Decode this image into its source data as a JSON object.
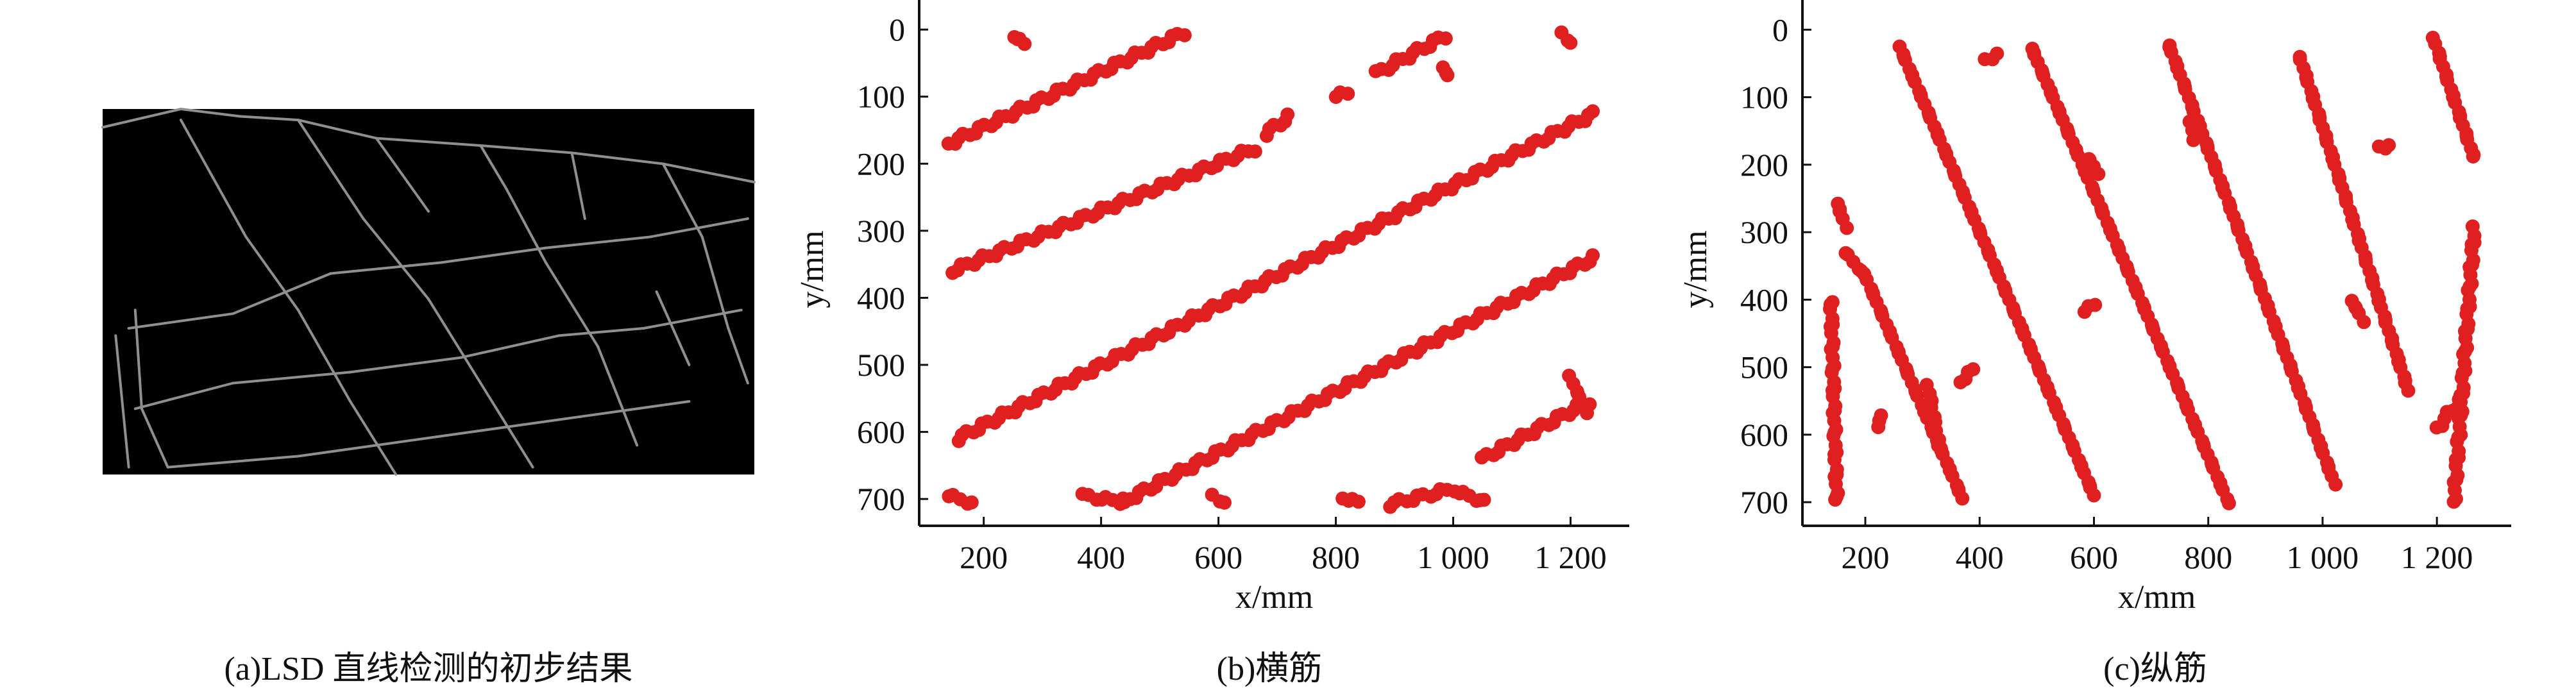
{
  "captions": {
    "a": "(a)LSD 直线检测的初步结果",
    "b": "(b)横筋",
    "c": "(c)纵筋"
  },
  "colors": {
    "points": "#e02020",
    "edge_lines": "#8f8f8f",
    "edge_image_background": "#000000"
  },
  "chart_data": [
    {
      "panel": "a",
      "type": "other",
      "description_label": "(a)LSD 直线检测的初步结果",
      "edge_segments": [
        [
          [
            0,
            0.05
          ],
          [
            0.12,
            0.0
          ]
        ],
        [
          [
            0.12,
            0.0
          ],
          [
            0.21,
            0.02
          ]
        ],
        [
          [
            0.21,
            0.02
          ],
          [
            0.3,
            0.03
          ]
        ],
        [
          [
            0.3,
            0.03
          ],
          [
            0.42,
            0.08
          ]
        ],
        [
          [
            0.42,
            0.08
          ],
          [
            0.58,
            0.1
          ]
        ],
        [
          [
            0.58,
            0.1
          ],
          [
            0.72,
            0.12
          ]
        ],
        [
          [
            0.72,
            0.12
          ],
          [
            0.86,
            0.15
          ]
        ],
        [
          [
            0.86,
            0.15
          ],
          [
            1.0,
            0.2
          ]
        ],
        [
          [
            0.04,
            0.6
          ],
          [
            0.2,
            0.56
          ]
        ],
        [
          [
            0.2,
            0.56
          ],
          [
            0.35,
            0.45
          ]
        ],
        [
          [
            0.35,
            0.45
          ],
          [
            0.52,
            0.42
          ]
        ],
        [
          [
            0.52,
            0.42
          ],
          [
            0.68,
            0.38
          ]
        ],
        [
          [
            0.68,
            0.38
          ],
          [
            0.84,
            0.35
          ]
        ],
        [
          [
            0.84,
            0.35
          ],
          [
            0.99,
            0.3
          ]
        ],
        [
          [
            0.05,
            0.82
          ],
          [
            0.2,
            0.75
          ]
        ],
        [
          [
            0.2,
            0.75
          ],
          [
            0.38,
            0.72
          ]
        ],
        [
          [
            0.38,
            0.72
          ],
          [
            0.55,
            0.68
          ]
        ],
        [
          [
            0.55,
            0.68
          ],
          [
            0.7,
            0.62
          ]
        ],
        [
          [
            0.7,
            0.62
          ],
          [
            0.83,
            0.6
          ]
        ],
        [
          [
            0.83,
            0.6
          ],
          [
            0.98,
            0.55
          ]
        ],
        [
          [
            0.1,
            0.98
          ],
          [
            0.3,
            0.95
          ]
        ],
        [
          [
            0.3,
            0.95
          ],
          [
            0.5,
            0.9
          ]
        ],
        [
          [
            0.5,
            0.9
          ],
          [
            0.7,
            0.85
          ]
        ],
        [
          [
            0.7,
            0.85
          ],
          [
            0.9,
            0.8
          ]
        ],
        [
          [
            0.12,
            0.03
          ],
          [
            0.22,
            0.35
          ]
        ],
        [
          [
            0.22,
            0.35
          ],
          [
            0.3,
            0.55
          ]
        ],
        [
          [
            0.3,
            0.55
          ],
          [
            0.38,
            0.8
          ]
        ],
        [
          [
            0.38,
            0.8
          ],
          [
            0.45,
            1.0
          ]
        ],
        [
          [
            0.3,
            0.03
          ],
          [
            0.4,
            0.3
          ]
        ],
        [
          [
            0.4,
            0.3
          ],
          [
            0.5,
            0.52
          ]
        ],
        [
          [
            0.5,
            0.52
          ],
          [
            0.58,
            0.75
          ]
        ],
        [
          [
            0.58,
            0.75
          ],
          [
            0.66,
            0.98
          ]
        ],
        [
          [
            0.42,
            0.08
          ],
          [
            0.5,
            0.28
          ]
        ],
        [
          [
            0.58,
            0.1
          ],
          [
            0.62,
            0.22
          ]
        ],
        [
          [
            0.62,
            0.22
          ],
          [
            0.68,
            0.42
          ]
        ],
        [
          [
            0.68,
            0.42
          ],
          [
            0.76,
            0.65
          ]
        ],
        [
          [
            0.76,
            0.65
          ],
          [
            0.82,
            0.92
          ]
        ],
        [
          [
            0.86,
            0.15
          ],
          [
            0.92,
            0.35
          ]
        ],
        [
          [
            0.92,
            0.35
          ],
          [
            0.96,
            0.6
          ]
        ],
        [
          [
            0.96,
            0.6
          ],
          [
            0.99,
            0.75
          ]
        ],
        [
          [
            0.05,
            0.55
          ],
          [
            0.06,
            0.82
          ]
        ],
        [
          [
            0.06,
            0.82
          ],
          [
            0.1,
            0.98
          ]
        ],
        [
          [
            0.02,
            0.62
          ],
          [
            0.04,
            0.98
          ]
        ],
        [
          [
            0.72,
            0.12
          ],
          [
            0.74,
            0.3
          ]
        ],
        [
          [
            0.85,
            0.5
          ],
          [
            0.9,
            0.7
          ]
        ]
      ]
    },
    {
      "panel": "b",
      "type": "scatter",
      "xlabel": "x/mm",
      "ylabel": "y/mm",
      "xlim": [
        90,
        1300
      ],
      "ylim": [
        740,
        -25
      ],
      "xticks": [
        200,
        400,
        600,
        800,
        1000,
        1200
      ],
      "xtick_labels": [
        "200",
        "400",
        "600",
        "800",
        "1 000",
        "1 200"
      ],
      "yticks": [
        0,
        100,
        200,
        300,
        400,
        500,
        600,
        700
      ],
      "ytick_labels": [
        "0",
        "100",
        "200",
        "300",
        "400",
        "500",
        "600",
        "700"
      ],
      "grid": false,
      "point_segments": [
        [
          [
            140,
            170
          ],
          [
            540,
            5
          ]
        ],
        [
          [
            250,
            8
          ],
          [
            270,
            22
          ]
        ],
        [
          [
            680,
            155
          ],
          [
            720,
            130
          ]
        ],
        [
          [
            800,
            100
          ],
          [
            820,
            95
          ]
        ],
        [
          [
            870,
            65
          ],
          [
            985,
            10
          ]
        ],
        [
          [
            985,
            60
          ],
          [
            988,
            65
          ]
        ],
        [
          [
            1185,
            5
          ],
          [
            1200,
            20
          ]
        ],
        [
          [
            145,
            360
          ],
          [
            660,
            178
          ]
        ],
        [
          [
            155,
            610
          ],
          [
            1240,
            125
          ]
        ],
        [
          [
            140,
            695
          ],
          [
            180,
            706
          ]
        ],
        [
          [
            370,
            695
          ],
          [
            440,
            705
          ]
        ],
        [
          [
            440,
            703
          ],
          [
            1240,
            340
          ]
        ],
        [
          [
            590,
            695
          ],
          [
            610,
            705
          ]
        ],
        [
          [
            810,
            697
          ],
          [
            840,
            706
          ]
        ],
        [
          [
            890,
            708
          ],
          [
            1000,
            685
          ]
        ],
        [
          [
            1010,
            690
          ],
          [
            1055,
            705
          ]
        ],
        [
          [
            1050,
            640
          ],
          [
            1230,
            555
          ]
        ],
        [
          [
            1200,
            520
          ],
          [
            1230,
            575
          ]
        ]
      ]
    },
    {
      "panel": "c",
      "type": "scatter",
      "xlabel": "x/mm",
      "ylabel": "y/mm",
      "xlim": [
        90,
        1330
      ],
      "ylim": [
        735,
        -25
      ],
      "xticks": [
        200,
        400,
        600,
        800,
        1000,
        1200
      ],
      "xtick_labels": [
        "200",
        "400",
        "600",
        "800",
        "1 000",
        "1 200"
      ],
      "yticks": [
        0,
        100,
        200,
        300,
        400,
        500,
        600,
        700
      ],
      "ytick_labels": [
        "0",
        "100",
        "200",
        "300",
        "400",
        "500",
        "600",
        "700"
      ],
      "grid": false,
      "point_segments": [
        [
          [
            260,
            25
          ],
          [
            600,
            690
          ]
        ],
        [
          [
            490,
            25
          ],
          [
            835,
            700
          ]
        ],
        [
          [
            730,
            20
          ],
          [
            1020,
            670
          ]
        ],
        [
          [
            960,
            40
          ],
          [
            1150,
            535
          ]
        ],
        [
          [
            1195,
            15
          ],
          [
            1265,
            190
          ]
        ],
        [
          [
            1265,
            295
          ],
          [
            1230,
            700
          ]
        ],
        [
          [
            1200,
            590
          ],
          [
            1240,
            550
          ]
        ],
        [
          [
            150,
            255
          ],
          [
            165,
            290
          ]
        ],
        [
          [
            140,
            400
          ],
          [
            150,
            700
          ]
        ],
        [
          [
            165,
            330
          ],
          [
            200,
            365
          ]
        ],
        [
          [
            200,
            365
          ],
          [
            370,
            695
          ]
        ],
        [
          [
            310,
            530
          ],
          [
            330,
            620
          ]
        ],
        [
          [
            410,
            45
          ],
          [
            430,
            35
          ]
        ],
        [
          [
            365,
            520
          ],
          [
            390,
            505
          ]
        ],
        [
          [
            220,
            585
          ],
          [
            230,
            575
          ]
        ],
        [
          [
            590,
            190
          ],
          [
            605,
            210
          ]
        ],
        [
          [
            585,
            420
          ],
          [
            600,
            405
          ]
        ],
        [
          [
            770,
            140
          ],
          [
            775,
            165
          ]
        ],
        [
          [
            1100,
            175
          ],
          [
            1115,
            170
          ]
        ],
        [
          [
            1050,
            400
          ],
          [
            1070,
            430
          ]
        ]
      ]
    }
  ]
}
